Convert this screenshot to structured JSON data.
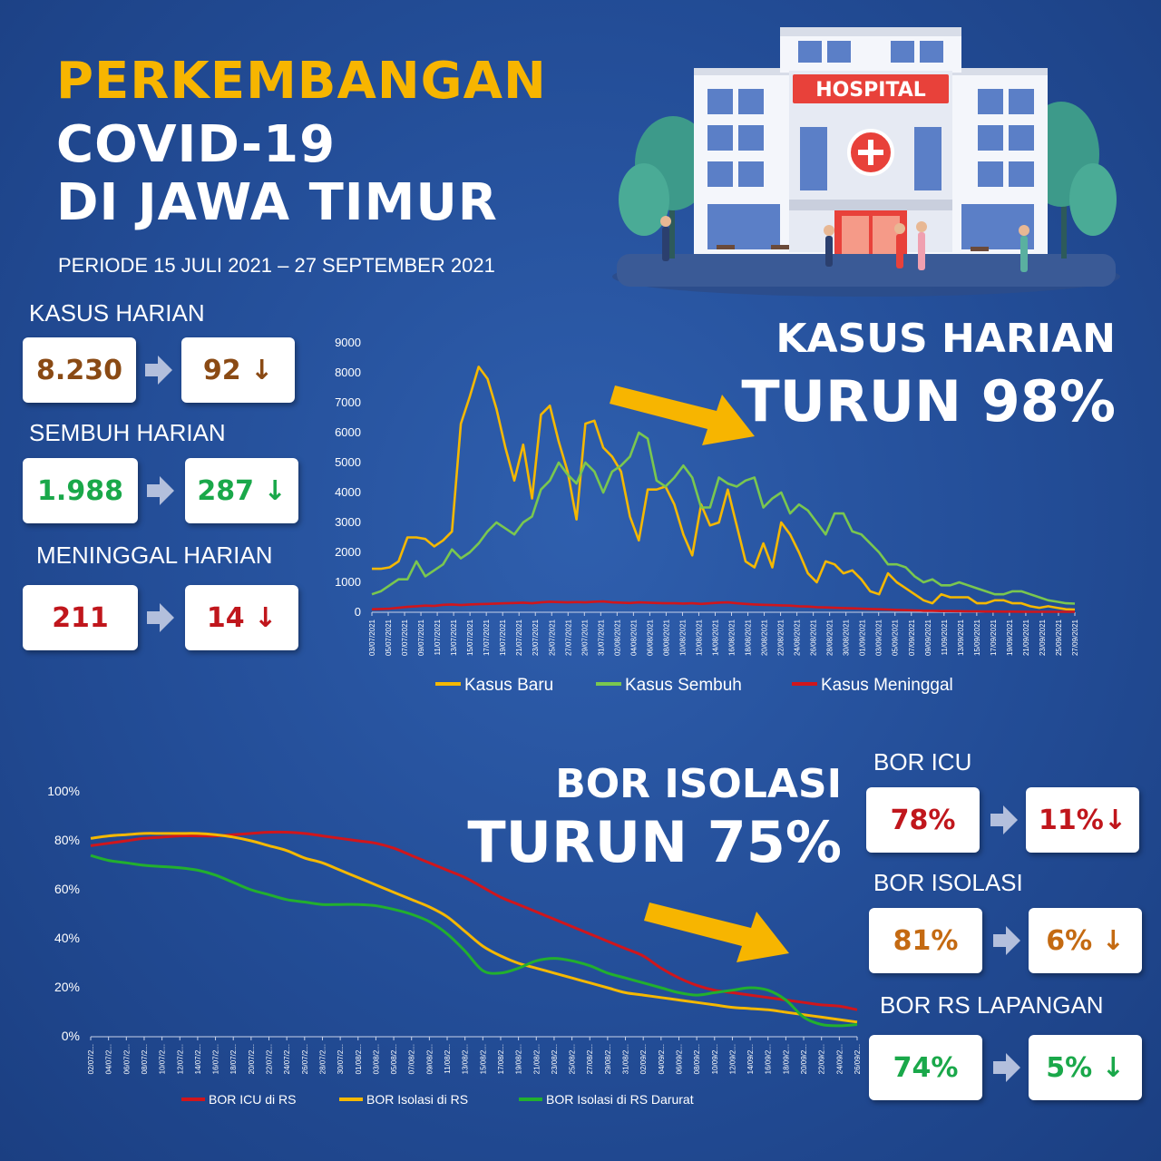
{
  "header": {
    "line1": "PERKEMBANGAN",
    "line2": "COVID-19",
    "line3": "DI JAWA TIMUR",
    "period": "PERIODE 15 JULI 2021 – 27 SEPTEMBER 2021"
  },
  "hospital": {
    "sign": "HOSPITAL"
  },
  "stats": {
    "kasus": {
      "label": "KASUS HARIAN",
      "from": "8.230",
      "to": "92 ↓",
      "color": "#8a4a14"
    },
    "sembuh": {
      "label": "SEMBUH HARIAN",
      "from": "1.988",
      "to": "287 ↓",
      "color": "#1aa84a"
    },
    "meninggal": {
      "label": "MENINGGAL HARIAN",
      "from": "211",
      "to": "14 ↓",
      "color": "#c0161c"
    }
  },
  "headline1": {
    "line1": "KASUS HARIAN",
    "line2": "TURUN 98%"
  },
  "headline2": {
    "line1": "BOR ISOLASI",
    "line2": "TURUN 75%"
  },
  "bor": {
    "icu": {
      "label": "BOR ICU",
      "from": "78%",
      "to": "11%↓",
      "color": "#c0161c"
    },
    "isolasi": {
      "label": "BOR ISOLASI",
      "from": "81%",
      "to": "6% ↓",
      "color": "#c46a12"
    },
    "lapangan": {
      "label": "BOR RS LAPANGAN",
      "from": "74%",
      "to": "5% ↓",
      "color": "#1aa84a"
    }
  },
  "chart_data": [
    {
      "type": "line",
      "ylim": [
        0,
        9000
      ],
      "yticks": [
        "0",
        "1000",
        "2000",
        "3000",
        "4000",
        "5000",
        "6000",
        "7000",
        "8000",
        "9000"
      ],
      "xticks": [
        "03/07/2021",
        "05/07/2021",
        "07/07/2021",
        "09/07/2021",
        "11/07/2021",
        "13/07/2021",
        "15/07/2021",
        "17/07/2021",
        "19/07/2021",
        "21/07/2021",
        "23/07/2021",
        "25/07/2021",
        "27/07/2021",
        "29/07/2021",
        "31/07/2021",
        "02/08/2021",
        "04/08/2021",
        "06/08/2021",
        "08/08/2021",
        "10/08/2021",
        "12/08/2021",
        "14/08/2021",
        "16/08/2021",
        "18/08/2021",
        "20/08/2021",
        "22/08/2021",
        "24/08/2021",
        "26/08/2021",
        "28/08/2021",
        "30/08/2021",
        "01/09/2021",
        "03/09/2021",
        "05/09/2021",
        "07/09/2021",
        "09/09/2021",
        "11/09/2021",
        "13/09/2021",
        "15/09/2021",
        "17/09/2021",
        "19/09/2021",
        "21/09/2021",
        "23/09/2021",
        "25/09/2021",
        "27/09/2021"
      ],
      "legend_position": "bottom",
      "series": [
        {
          "name": "Kasus Baru",
          "color": "#f5b800",
          "values": [
            1450,
            1450,
            1500,
            1700,
            2500,
            2500,
            2450,
            2200,
            2400,
            2700,
            6300,
            7200,
            8200,
            7800,
            6800,
            5500,
            4400,
            5600,
            3800,
            6600,
            6900,
            5700,
            4700,
            3100,
            6300,
            6400,
            5500,
            5200,
            4700,
            3200,
            2400,
            4100,
            4100,
            4200,
            3600,
            2600,
            1900,
            3600,
            2900,
            3000,
            4100,
            2900,
            1700,
            1500,
            2300,
            1500,
            3000,
            2600,
            2000,
            1300,
            1000,
            1700,
            1600,
            1300,
            1400,
            1100,
            700,
            600,
            1300,
            1000,
            800,
            600,
            400,
            300,
            600,
            500,
            500,
            500,
            300,
            300,
            400,
            400,
            300,
            300,
            200,
            150,
            200,
            150,
            100,
            92
          ]
        },
        {
          "name": "Kasus Sembuh",
          "color": "#7ac74f",
          "values": [
            600,
            700,
            900,
            1100,
            1100,
            1700,
            1200,
            1400,
            1600,
            2100,
            1800,
            2000,
            2300,
            2700,
            3000,
            2800,
            2600,
            3000,
            3200,
            4100,
            4400,
            5000,
            4600,
            4300,
            5000,
            4700,
            4000,
            4700,
            4900,
            5200,
            6000,
            5800,
            4400,
            4200,
            4500,
            4900,
            4500,
            3500,
            3500,
            4500,
            4300,
            4200,
            4400,
            4500,
            3500,
            3800,
            4000,
            3300,
            3600,
            3400,
            3000,
            2600,
            3300,
            3300,
            2700,
            2600,
            2300,
            2000,
            1600,
            1600,
            1500,
            1200,
            1000,
            1100,
            900,
            900,
            1000,
            900,
            800,
            700,
            600,
            600,
            700,
            700,
            600,
            500,
            400,
            350,
            300,
            287
          ]
        },
        {
          "name": "Kasus Meninggal",
          "color": "#d0161c",
          "values": [
            100,
            110,
            120,
            150,
            180,
            200,
            220,
            210,
            250,
            260,
            240,
            260,
            270,
            280,
            290,
            300,
            310,
            320,
            300,
            330,
            350,
            340,
            330,
            340,
            330,
            350,
            360,
            330,
            320,
            310,
            330,
            320,
            310,
            300,
            300,
            290,
            300,
            280,
            300,
            320,
            330,
            300,
            280,
            260,
            250,
            240,
            230,
            220,
            200,
            190,
            170,
            160,
            150,
            140,
            130,
            120,
            110,
            100,
            90,
            80,
            70,
            60,
            50,
            50,
            40,
            40,
            35,
            30,
            30,
            25,
            25,
            20,
            20,
            18,
            16,
            15,
            15,
            14,
            14,
            14
          ]
        }
      ]
    },
    {
      "type": "line",
      "ylim": [
        0,
        100
      ],
      "yticks": [
        "0%",
        "20%",
        "40%",
        "60%",
        "80%",
        "100%"
      ],
      "xticks": [
        "02/07/2...",
        "04/07/2...",
        "06/07/2...",
        "08/07/2...",
        "10/07/2...",
        "12/07/2...",
        "14/07/2...",
        "16/07/2...",
        "18/07/2...",
        "20/07/2...",
        "22/07/2...",
        "24/07/2...",
        "26/07/2...",
        "28/07/2...",
        "30/07/2...",
        "01/08/2...",
        "03/08/2...",
        "05/08/2...",
        "07/08/2...",
        "09/08/2...",
        "11/08/2...",
        "13/08/2...",
        "15/08/2...",
        "17/08/2...",
        "19/08/2...",
        "21/08/2...",
        "23/08/2...",
        "25/08/2...",
        "27/08/2...",
        "29/08/2...",
        "31/08/2...",
        "02/09/2...",
        "04/09/2...",
        "06/09/2...",
        "08/09/2...",
        "10/09/2...",
        "12/09/2...",
        "14/09/2...",
        "16/09/2...",
        "18/09/2...",
        "20/09/2...",
        "22/09/2...",
        "24/09/2...",
        "26/09/2..."
      ],
      "legend_position": "bottom",
      "series": [
        {
          "name": "BOR ICU di RS",
          "color": "#d0161c",
          "values": [
            78,
            79,
            80,
            81,
            81.5,
            82,
            82,
            82,
            82.5,
            83,
            83.5,
            83.5,
            83,
            82,
            81,
            80,
            79,
            77,
            74,
            71,
            68,
            65,
            61,
            57,
            54,
            51,
            48,
            45,
            42,
            39,
            36,
            33,
            28,
            24,
            21,
            19,
            18,
            17,
            16,
            15,
            14,
            13,
            12.5,
            11
          ]
        },
        {
          "name": "BOR Isolasi di RS",
          "color": "#f5b800",
          "values": [
            81,
            82,
            82.5,
            83,
            83,
            83,
            83,
            82.5,
            81.5,
            80,
            78,
            76,
            73,
            71,
            68,
            65,
            62,
            59,
            56,
            53,
            49,
            43,
            37,
            33,
            30,
            28,
            26,
            24,
            22,
            20,
            18,
            17,
            16,
            15,
            14,
            13,
            12,
            11.5,
            11,
            10,
            9,
            8,
            7,
            6
          ]
        },
        {
          "name": "BOR Isolasi di RS Darurat",
          "color": "#22b02e",
          "values": [
            74,
            72,
            71,
            70,
            69.5,
            69,
            68,
            66,
            63,
            60,
            58,
            56,
            55,
            54,
            54,
            54,
            53.5,
            52,
            50,
            47,
            42,
            35,
            27,
            26,
            28,
            31,
            32,
            31,
            29,
            26,
            24,
            22,
            20,
            18,
            17,
            18,
            19,
            20,
            19,
            15,
            8,
            5,
            4.5,
            5
          ]
        }
      ]
    }
  ]
}
